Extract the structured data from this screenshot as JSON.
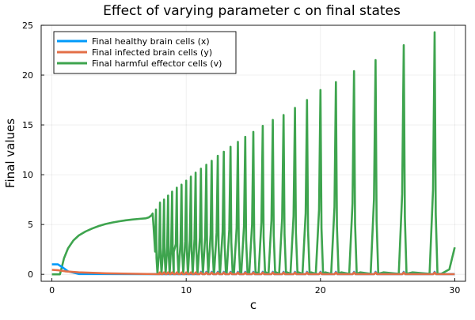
{
  "chart_data": {
    "type": "line",
    "title": "Effect of varying parameter c on final states",
    "xlabel": "c",
    "ylabel": "Final values",
    "xlim": [
      -0.8,
      30.8
    ],
    "ylim": [
      -0.7,
      25
    ],
    "xticks": [
      0,
      10,
      20,
      30
    ],
    "yticks": [
      0,
      5,
      10,
      15,
      20,
      25
    ],
    "grid": true,
    "legend_position": "top-left",
    "series": [
      {
        "name": "Final healthy brain cells (x)",
        "color": "#009AFA",
        "profile": {
          "start": 1.0,
          "plateau_until": 0.45,
          "decay_to": 0.03,
          "decay_until": 2.0,
          "spike_height": 0.25
        }
      },
      {
        "name": "Final infected brain cells (y)",
        "color": "#E36F47",
        "profile": {
          "start": 0.45,
          "decay_to": 0.01,
          "decay_until": 8.0,
          "spike_height": 0.2
        }
      },
      {
        "name": "Final harmful effector cells (v)",
        "color": "#3EA44E",
        "onset": 0.65,
        "smooth_points": [
          [
            0,
            0
          ],
          [
            0.6,
            0.0
          ],
          [
            0.7,
            0.5
          ],
          [
            0.9,
            1.6
          ],
          [
            1.2,
            2.6
          ],
          [
            1.6,
            3.4
          ],
          [
            2.0,
            3.9
          ],
          [
            2.5,
            4.3
          ],
          [
            3.0,
            4.6
          ],
          [
            3.5,
            4.85
          ],
          [
            4.0,
            5.05
          ],
          [
            4.5,
            5.2
          ],
          [
            5.0,
            5.32
          ],
          [
            5.5,
            5.42
          ],
          [
            6.0,
            5.5
          ],
          [
            6.5,
            5.57
          ],
          [
            7.0,
            5.62
          ],
          [
            7.2,
            5.7
          ],
          [
            7.4,
            5.9
          ],
          [
            7.5,
            6.1
          ]
        ],
        "peaks": [
          {
            "c": 7.75,
            "max": 6.5
          },
          {
            "c": 8.05,
            "max": 7.2
          },
          {
            "c": 8.35,
            "max": 7.5
          },
          {
            "c": 8.65,
            "max": 7.9
          },
          {
            "c": 8.95,
            "max": 8.3
          },
          {
            "c": 9.3,
            "max": 8.7
          },
          {
            "c": 9.65,
            "max": 9.0
          },
          {
            "c": 10.0,
            "max": 9.4
          },
          {
            "c": 10.35,
            "max": 9.8
          },
          {
            "c": 10.7,
            "max": 10.2
          },
          {
            "c": 11.1,
            "max": 10.6
          },
          {
            "c": 11.5,
            "max": 11.0
          },
          {
            "c": 11.9,
            "max": 11.4
          },
          {
            "c": 12.35,
            "max": 11.9
          },
          {
            "c": 12.8,
            "max": 12.3
          },
          {
            "c": 13.3,
            "max": 12.8
          },
          {
            "c": 13.85,
            "max": 13.3
          },
          {
            "c": 14.4,
            "max": 13.8
          },
          {
            "c": 15.0,
            "max": 14.3
          },
          {
            "c": 15.7,
            "max": 14.9
          },
          {
            "c": 16.45,
            "max": 15.5
          },
          {
            "c": 17.25,
            "max": 16.0
          },
          {
            "c": 18.1,
            "max": 16.7
          },
          {
            "c": 19.0,
            "max": 17.5
          },
          {
            "c": 20.0,
            "max": 18.5
          },
          {
            "c": 21.15,
            "max": 19.3
          },
          {
            "c": 22.5,
            "max": 20.4
          },
          {
            "c": 24.1,
            "max": 21.5
          },
          {
            "c": 26.2,
            "max": 23.0
          },
          {
            "c": 28.5,
            "max": 24.3
          }
        ],
        "end": {
          "c": 30.0,
          "value": 2.7
        }
      }
    ]
  }
}
